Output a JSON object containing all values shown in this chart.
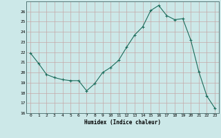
{
  "x": [
    0,
    1,
    2,
    3,
    4,
    5,
    6,
    7,
    8,
    9,
    10,
    11,
    12,
    13,
    14,
    15,
    16,
    17,
    18,
    19,
    20,
    21,
    22,
    23
  ],
  "y": [
    21.9,
    20.9,
    19.8,
    19.5,
    19.3,
    19.2,
    19.2,
    18.2,
    18.9,
    20.0,
    20.5,
    21.2,
    22.5,
    23.7,
    24.5,
    26.1,
    26.6,
    25.6,
    25.2,
    25.3,
    23.2,
    20.1,
    17.7,
    16.5
  ],
  "xlabel": "Humidex (Indice chaleur)",
  "xlim": [
    -0.5,
    23.5
  ],
  "ylim": [
    16,
    27
  ],
  "yticks": [
    16,
    17,
    18,
    19,
    20,
    21,
    22,
    23,
    24,
    25,
    26
  ],
  "xticks": [
    0,
    1,
    2,
    3,
    4,
    5,
    6,
    7,
    8,
    9,
    10,
    11,
    12,
    13,
    14,
    15,
    16,
    17,
    18,
    19,
    20,
    21,
    22,
    23
  ],
  "line_color": "#1a6b5a",
  "marker": "+",
  "bg_color": "#cce8e8",
  "grid_color": "#c4a8a8"
}
